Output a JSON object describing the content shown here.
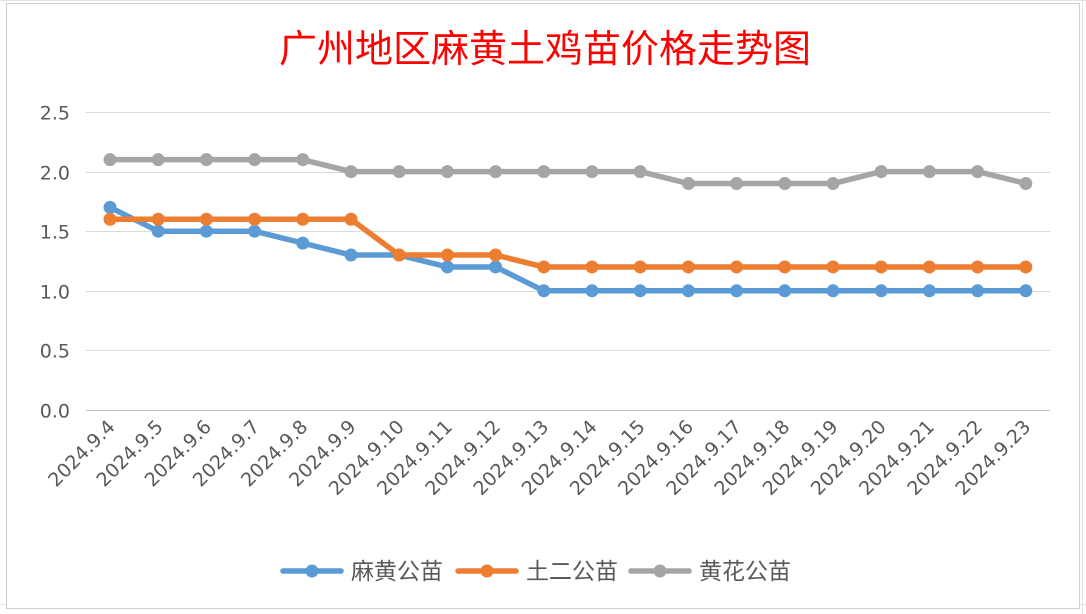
{
  "chart_data": {
    "type": "line",
    "title": "广州地区麻黄土鸡苗价格走势图",
    "xlabel": "",
    "ylabel": "",
    "ylim": [
      0,
      2.5
    ],
    "yticks": [
      "0.0",
      "0.5",
      "1.0",
      "1.5",
      "2.0",
      "2.5"
    ],
    "grid": true,
    "legend_position": "bottom",
    "categories": [
      "2024.9.4",
      "2024.9.5",
      "2024.9.6",
      "2024.9.7",
      "2024.9.8",
      "2024.9.9",
      "2024.9.10",
      "2024.9.11",
      "2024.9.12",
      "2024.9.13",
      "2024.9.14",
      "2024.9.15",
      "2024.9.16",
      "2024.9.17",
      "2024.9.18",
      "2024.9.19",
      "2024.9.20",
      "2024.9.21",
      "2024.9.22",
      "2024.9.23"
    ],
    "series": [
      {
        "name": "麻黄公苗",
        "color": "#5b9bd5",
        "values": [
          1.7,
          1.5,
          1.5,
          1.5,
          1.4,
          1.3,
          1.3,
          1.2,
          1.2,
          1.0,
          1.0,
          1.0,
          1.0,
          1.0,
          1.0,
          1.0,
          1.0,
          1.0,
          1.0,
          1.0
        ]
      },
      {
        "name": "土二公苗",
        "color": "#ed7d31",
        "values": [
          1.6,
          1.6,
          1.6,
          1.6,
          1.6,
          1.6,
          1.3,
          1.3,
          1.3,
          1.2,
          1.2,
          1.2,
          1.2,
          1.2,
          1.2,
          1.2,
          1.2,
          1.2,
          1.2,
          1.2
        ]
      },
      {
        "name": "黄花公苗",
        "color": "#a5a5a5",
        "values": [
          2.1,
          2.1,
          2.1,
          2.1,
          2.1,
          2.0,
          2.0,
          2.0,
          2.0,
          2.0,
          2.0,
          2.0,
          1.9,
          1.9,
          1.9,
          1.9,
          2.0,
          2.0,
          2.0,
          1.9
        ]
      }
    ]
  }
}
